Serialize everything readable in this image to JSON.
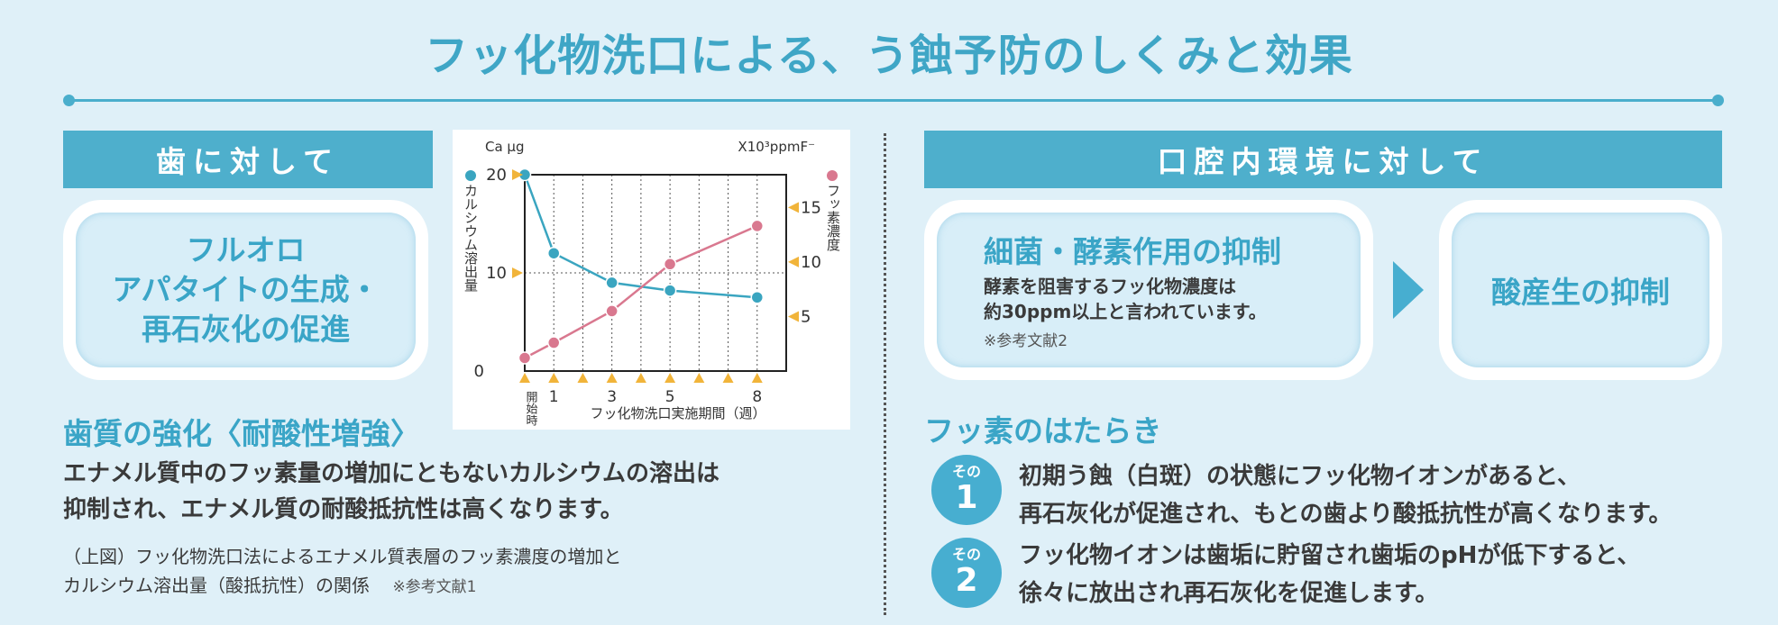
{
  "title": "フッ化物洗口による、う蝕予防のしくみと効果",
  "left": {
    "header": "歯に対して",
    "bubble_lines": [
      "フルオロ",
      "アパタイトの生成・",
      "再石灰化の促進"
    ],
    "subheading": "歯質の強化〈耐酸性増強〉",
    "body_lines": [
      "エナメル質中のフッ素量の増加にともないカルシウムの溶出は",
      "抑制され、エナメル質の耐酸抵抗性は高くなります。"
    ],
    "caption_lines": [
      "（上図）フッ化物洗口法によるエナメル質表層のフッ素濃度の増加と",
      "カルシウム溶出量（酸抵抗性）の関係"
    ],
    "caption_ref": "※参考文献1"
  },
  "right": {
    "header": "口腔内環境に対して",
    "bubble1_title": "細菌・酵素作用の抑制",
    "bubble1_lines": [
      "酵素を阻害するフッ化物濃度は",
      "約30ppm以上と言われています。"
    ],
    "bubble1_ref": "※参考文献2",
    "bubble2_title": "酸産生の抑制",
    "subheading": "フッ素のはたらき",
    "items": [
      {
        "badge_label": "その",
        "badge_num": "1",
        "lines": [
          "初期う蝕（白斑）の状態にフッ化物イオンがあると、",
          "再石灰化が促進され、もとの歯より酸抵抗性が高くなります。"
        ]
      },
      {
        "badge_label": "その",
        "badge_num": "2",
        "lines": [
          "フッ化物イオンは歯垢に貯留され歯垢のpHが低下すると、",
          "徐々に放出され再石灰化を促進します。"
        ]
      }
    ]
  },
  "colors": {
    "accent": "#4eafcc",
    "title": "#3fa6c6",
    "calcium": "#3aa5c0",
    "fluoride": "#d9788f",
    "marker": "#f1b43a",
    "background": "#dff0f8"
  },
  "chart_data": {
    "type": "line",
    "left_unit": "Ca μg",
    "right_unit": "X10³ppmF⁻",
    "left_axis_label": "カルシウム溶出量",
    "right_axis_label": "フッ素濃度",
    "xlabel": "フッ化物洗口実施期間（週）",
    "x_start_label": "開始時",
    "x_tick_labels": [
      "1",
      "3",
      "5",
      "8"
    ],
    "y_left_ticks": [
      "20",
      "10",
      "0"
    ],
    "y_right_ticks": [
      "15",
      "10",
      "5"
    ],
    "ylim_left": [
      0,
      20
    ],
    "ylim_right": [
      0,
      18
    ],
    "x_range": [
      0,
      9
    ],
    "series": [
      {
        "name": "カルシウム溶出量",
        "axis": "left",
        "color": "#3aa5c0",
        "x": [
          0,
          1,
          3,
          5,
          8
        ],
        "y": [
          20,
          12,
          9,
          8.2,
          7.5
        ]
      },
      {
        "name": "フッ素濃度",
        "axis": "right",
        "color": "#d9788f",
        "x": [
          0,
          1,
          3,
          5,
          8
        ],
        "y": [
          1.2,
          2.6,
          5.5,
          9.8,
          13.3
        ]
      }
    ]
  }
}
